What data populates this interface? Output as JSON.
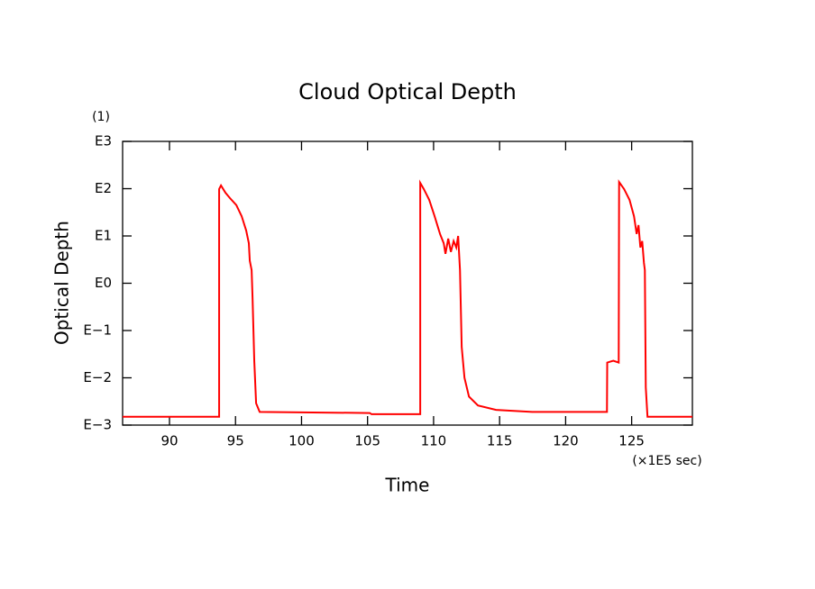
{
  "chart_data": {
    "type": "line",
    "title": "Cloud Optical Depth",
    "x_label": "Time",
    "y_label": "Optical Depth",
    "x_unit": "(×1E5 sec)",
    "y_unit": "(1)",
    "color": "#ff0000",
    "x": [
      86.45,
      93.76,
      93.76,
      93.9,
      94.24,
      94.58,
      95.06,
      95.47,
      95.81,
      96.01,
      96.08,
      96.22,
      96.29,
      96.42,
      96.56,
      96.83,
      105.17,
      105.3,
      108.99,
      108.99,
      109.26,
      109.67,
      110.08,
      110.49,
      110.77,
      110.9,
      111.11,
      111.31,
      111.52,
      111.72,
      111.86,
      112.0,
      112.13,
      112.34,
      112.68,
      113.36,
      114.73,
      117.46,
      123.13,
      123.15,
      123.61,
      124.02,
      124.05,
      124.43,
      124.84,
      125.18,
      125.38,
      125.52,
      125.66,
      125.8,
      125.93,
      126.0,
      126.07,
      126.2,
      129.6
    ],
    "values": [
      0.0015,
      0.0015,
      98,
      117,
      82,
      63,
      45,
      26,
      13,
      7,
      3,
      1.9,
      0.5,
      0.023,
      0.0029,
      0.0019,
      0.0018,
      0.0017,
      0.0017,
      133,
      98,
      58,
      26,
      11,
      7,
      4.2,
      8.8,
      4.6,
      7.8,
      5.7,
      10,
      1.9,
      0.045,
      0.01,
      0.004,
      0.0026,
      0.0021,
      0.0019,
      0.0019,
      0.021,
      0.023,
      0.021,
      138,
      98,
      58,
      26,
      11,
      17,
      5.7,
      7.8,
      2.7,
      1.9,
      0.0063,
      0.0015,
      0.0015
    ],
    "xlim": [
      86.45,
      129.6
    ],
    "xticks": [
      90,
      95,
      100,
      105,
      110,
      115,
      120,
      125
    ],
    "ylim": [
      0.001,
      1000
    ],
    "log_y": true,
    "yticks": [
      {
        "value": 0.001,
        "label": "E−3"
      },
      {
        "value": 0.01,
        "label": "E−2"
      },
      {
        "value": 0.1,
        "label": "E−1"
      },
      {
        "value": 1,
        "label": "E0"
      },
      {
        "value": 10,
        "label": "E1"
      },
      {
        "value": 100,
        "label": "E2"
      },
      {
        "value": 1000,
        "label": "E3"
      }
    ],
    "grid": false
  }
}
